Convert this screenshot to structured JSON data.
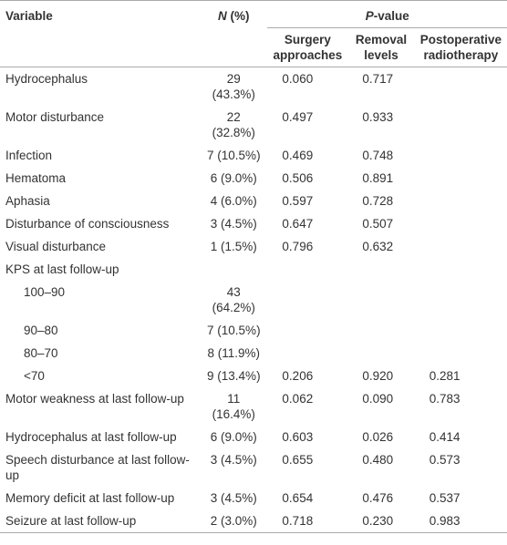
{
  "table": {
    "header": {
      "variable": "Variable",
      "n_percent": [
        "N",
        " (%)"
      ],
      "p_value": [
        "P",
        "-value"
      ],
      "subheaders": [
        "Surgery approaches",
        "Removal levels",
        "Postoperative radiotherapy"
      ]
    },
    "rows": [
      [
        "Hydrocephalus",
        "29 (43.3%)",
        "0.060",
        "0.717",
        null
      ],
      [
        "Motor disturbance",
        "22 (32.8%)",
        "0.497",
        "0.933",
        null
      ],
      [
        "Infection",
        "7 (10.5%)",
        "0.469",
        "0.748",
        null
      ],
      [
        "Hematoma",
        "6 (9.0%)",
        "0.506",
        "0.891",
        null
      ],
      [
        "Aphasia",
        "4 (6.0%)",
        "0.597",
        "0.728",
        null
      ],
      [
        "Disturbance of consciousness",
        "3 (4.5%)",
        "0.647",
        "0.507",
        null
      ],
      [
        "Visual disturbance",
        "1 (1.5%)",
        "0.796",
        "0.632",
        null
      ],
      {
        "label": "KPS at last follow-up",
        "rows": [
          [
            "100–90",
            "43 (64.2%)",
            null,
            null,
            null
          ],
          [
            "90–80",
            "7 (10.5%)",
            null,
            null,
            null
          ],
          [
            "80–70",
            "8 (11.9%)",
            null,
            null,
            null
          ],
          [
            "<70",
            "9 (13.4%)",
            "0.206",
            "0.920",
            "0.281"
          ]
        ]
      },
      [
        "Motor weakness at last follow-up",
        "11 (16.4%)",
        "0.062",
        "0.090",
        "0.783"
      ],
      [
        "Hydrocephalus at last follow-up",
        "6 (9.0%)",
        "0.603",
        "0.026",
        "0.414"
      ],
      [
        "Speech disturbance at last follow-up",
        "3 (4.5%)",
        "0.655",
        "0.480",
        "0.573"
      ],
      [
        "Memory deficit at last follow-up",
        "3 (4.5%)",
        "0.654",
        "0.476",
        "0.537"
      ],
      [
        "Seizure at last follow-up",
        "2 (3.0%)",
        "0.718",
        "0.230",
        "0.983"
      ]
    ]
  }
}
